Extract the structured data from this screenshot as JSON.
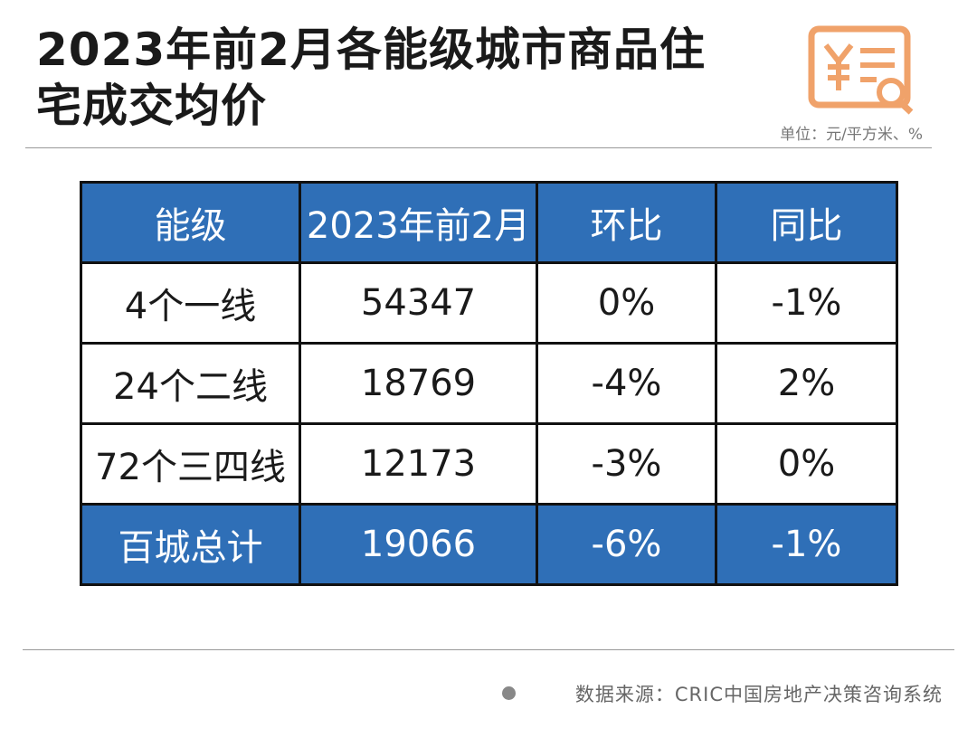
{
  "header": {
    "title_lines": [
      "2023年前2月各能级城市商品住",
      "宅成交均价"
    ],
    "unit": "单位：元/平方米、%"
  },
  "table": {
    "columns": [
      "能级",
      "2023年前2月",
      "环比",
      "同比"
    ],
    "rows": [
      [
        "4个一线",
        "54347",
        "0%",
        "-1%"
      ],
      [
        "24个二线",
        "18769",
        "-4%",
        "2%"
      ],
      [
        "72个三四线",
        "12173",
        "-3%",
        "0%"
      ],
      [
        "百城总计",
        "19066",
        "-6%",
        "-1%"
      ]
    ]
  },
  "footer": {
    "source": "数据来源：CRIC中国房地产决策咨询系统"
  }
}
